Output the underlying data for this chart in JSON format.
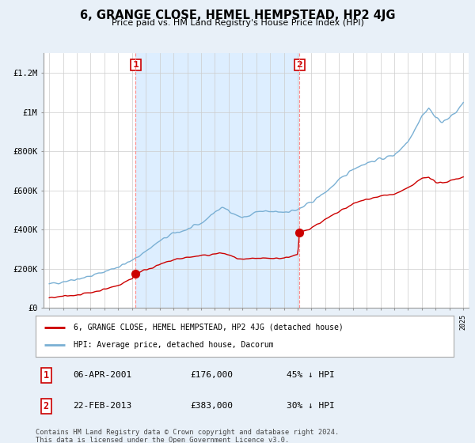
{
  "title": "6, GRANGE CLOSE, HEMEL HEMPSTEAD, HP2 4JG",
  "subtitle": "Price paid vs. HM Land Registry's House Price Index (HPI)",
  "ylabel_ticks": [
    "£0",
    "£200K",
    "£400K",
    "£600K",
    "£800K",
    "£1M",
    "£1.2M"
  ],
  "ytick_values": [
    0,
    200000,
    400000,
    600000,
    800000,
    1000000,
    1200000
  ],
  "ylim": [
    0,
    1300000
  ],
  "sale1_x": 2001.27,
  "sale1_price": 176000,
  "sale2_x": 2013.14,
  "sale2_price": 383000,
  "legend_line1": "6, GRANGE CLOSE, HEMEL HEMPSTEAD, HP2 4JG (detached house)",
  "legend_line2": "HPI: Average price, detached house, Dacorum",
  "footer": "Contains HM Land Registry data © Crown copyright and database right 2024.\nThis data is licensed under the Open Government Licence v3.0.",
  "sale_color": "#cc0000",
  "hpi_color": "#7ab0d4",
  "shade_color": "#ddeeff",
  "vline_color": "#ff8888",
  "background_color": "#e8f0f8",
  "plot_bg": "#ffffff",
  "grid_color": "#cccccc",
  "table1_date": "06-APR-2001",
  "table1_price": "£176,000",
  "table1_pct": "45% ↓ HPI",
  "table2_date": "22-FEB-2013",
  "table2_price": "£383,000",
  "table2_pct": "30% ↓ HPI"
}
